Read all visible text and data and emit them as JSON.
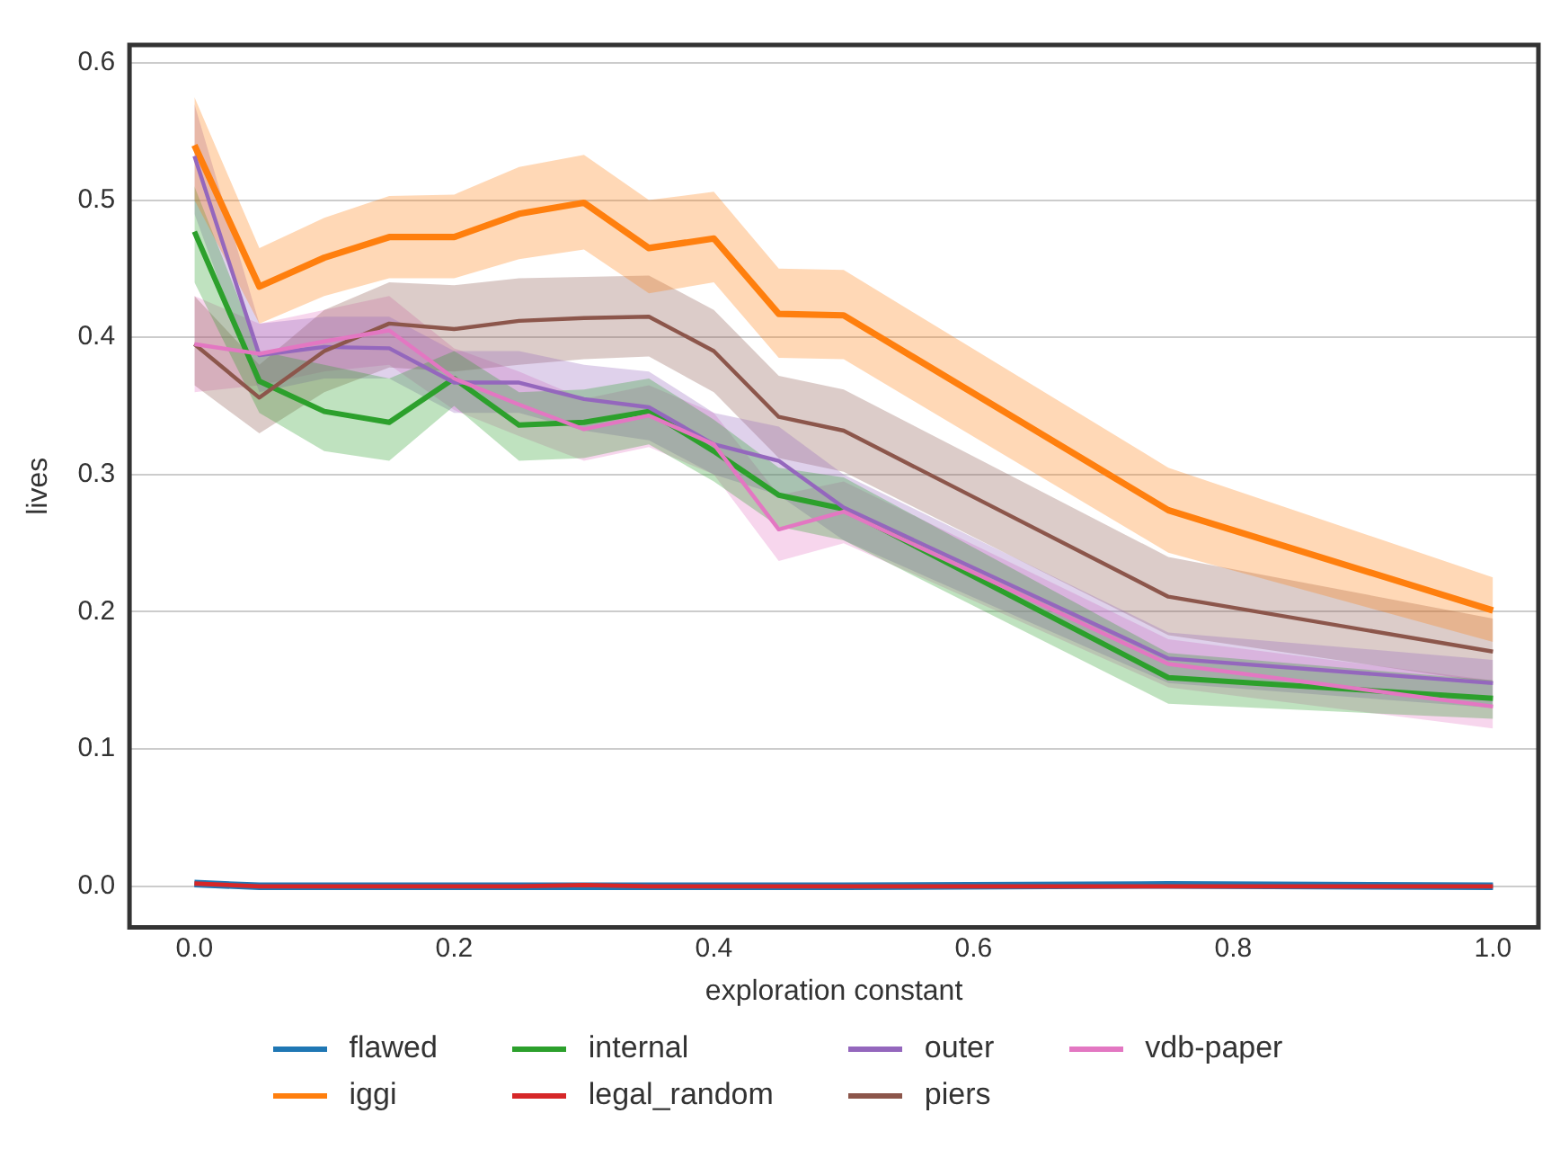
{
  "chart_data": {
    "type": "line",
    "xlabel": "exploration constant",
    "ylabel": "lives",
    "x": [
      0,
      0.05,
      0.1,
      0.15,
      0.2,
      0.25,
      0.3,
      0.35,
      0.4,
      0.45,
      0.5,
      0.75,
      1.0
    ],
    "xlim": [
      -0.05,
      1.035
    ],
    "ylim": [
      -0.03,
      0.613
    ],
    "xticks": [
      {
        "value": 0,
        "label": "0.0"
      },
      {
        "value": 0.2,
        "label": "0.2"
      },
      {
        "value": 0.4,
        "label": "0.4"
      },
      {
        "value": 0.6,
        "label": "0.6"
      },
      {
        "value": 0.8,
        "label": "0.8"
      },
      {
        "value": 1,
        "label": "1.0"
      }
    ],
    "yticks": [
      {
        "value": 0,
        "label": "0.0"
      },
      {
        "value": 0.1,
        "label": "0.1"
      },
      {
        "value": 0.2,
        "label": "0.2"
      },
      {
        "value": 0.3,
        "label": "0.3"
      },
      {
        "value": 0.4,
        "label": "0.4"
      },
      {
        "value": 0.5,
        "label": "0.5"
      },
      {
        "value": 0.6,
        "label": "0.6"
      }
    ],
    "grid": "y",
    "legend": "bottom",
    "marker": "none",
    "line_style": "solid",
    "series": [
      {
        "name": "flawed",
        "color": "#1f77b4",
        "values": [
          0.002,
          0,
          0,
          0,
          0,
          0,
          0,
          0,
          0,
          0,
          0,
          0.001,
          0
        ]
      },
      {
        "name": "iggi",
        "color": "#ff7f0e",
        "values": [
          0.54,
          0.437,
          0.458,
          0.473,
          0.473,
          0.49,
          0.498,
          0.465,
          0.472,
          0.417,
          0.416,
          0.274,
          0.201
        ],
        "lower": [
          0.5,
          0.41,
          0.43,
          0.443,
          0.443,
          0.457,
          0.464,
          0.432,
          0.44,
          0.385,
          0.384,
          0.243,
          0.178
        ],
        "upper": [
          0.575,
          0.465,
          0.487,
          0.503,
          0.504,
          0.524,
          0.533,
          0.5,
          0.506,
          0.45,
          0.449,
          0.305,
          0.225
        ]
      },
      {
        "name": "internal",
        "color": "#2ca02c",
        "values": [
          0.477,
          0.368,
          0.346,
          0.338,
          0.37,
          0.336,
          0.338,
          0.346,
          0.317,
          0.285,
          0.275,
          0.152,
          0.137
        ],
        "lower": [
          0.44,
          0.345,
          0.317,
          0.31,
          0.35,
          0.31,
          0.312,
          0.322,
          0.295,
          0.262,
          0.252,
          0.133,
          0.122
        ],
        "upper": [
          0.51,
          0.39,
          0.38,
          0.37,
          0.39,
          0.36,
          0.362,
          0.37,
          0.34,
          0.305,
          0.298,
          0.17,
          0.15
        ]
      },
      {
        "name": "legal_random",
        "color": "#d62728",
        "values": [
          0.002,
          0,
          0,
          0,
          0,
          0,
          0.001,
          0,
          0,
          0,
          0,
          0,
          0
        ]
      },
      {
        "name": "outer",
        "color": "#9467bd",
        "values": [
          0.532,
          0.387,
          0.393,
          0.392,
          0.367,
          0.367,
          0.355,
          0.349,
          0.322,
          0.31,
          0.276,
          0.166,
          0.148
        ],
        "lower": [
          0.49,
          0.36,
          0.37,
          0.37,
          0.345,
          0.345,
          0.332,
          0.325,
          0.3,
          0.285,
          0.252,
          0.148,
          0.13
        ],
        "upper": [
          0.57,
          0.41,
          0.415,
          0.415,
          0.39,
          0.39,
          0.38,
          0.375,
          0.345,
          0.335,
          0.3,
          0.185,
          0.165
        ]
      },
      {
        "name": "piers",
        "color": "#8c564b",
        "values": [
          0.395,
          0.356,
          0.39,
          0.41,
          0.406,
          0.412,
          0.414,
          0.415,
          0.39,
          0.342,
          0.332,
          0.211,
          0.171
        ],
        "lower": [
          0.365,
          0.33,
          0.36,
          0.378,
          0.375,
          0.38,
          0.384,
          0.386,
          0.36,
          0.312,
          0.302,
          0.183,
          0.148
        ],
        "upper": [
          0.43,
          0.38,
          0.42,
          0.44,
          0.438,
          0.443,
          0.444,
          0.445,
          0.42,
          0.372,
          0.362,
          0.24,
          0.195
        ]
      },
      {
        "name": "vdb-paper",
        "color": "#e377c2",
        "values": [
          0.395,
          0.388,
          0.397,
          0.405,
          0.37,
          0.351,
          0.333,
          0.343,
          0.322,
          0.26,
          0.273,
          0.162,
          0.131
        ],
        "lower": [
          0.36,
          0.365,
          0.375,
          0.38,
          0.347,
          0.328,
          0.31,
          0.32,
          0.3,
          0.237,
          0.25,
          0.145,
          0.115
        ],
        "upper": [
          0.43,
          0.41,
          0.42,
          0.43,
          0.392,
          0.375,
          0.355,
          0.365,
          0.345,
          0.285,
          0.295,
          0.18,
          0.15
        ]
      }
    ]
  }
}
